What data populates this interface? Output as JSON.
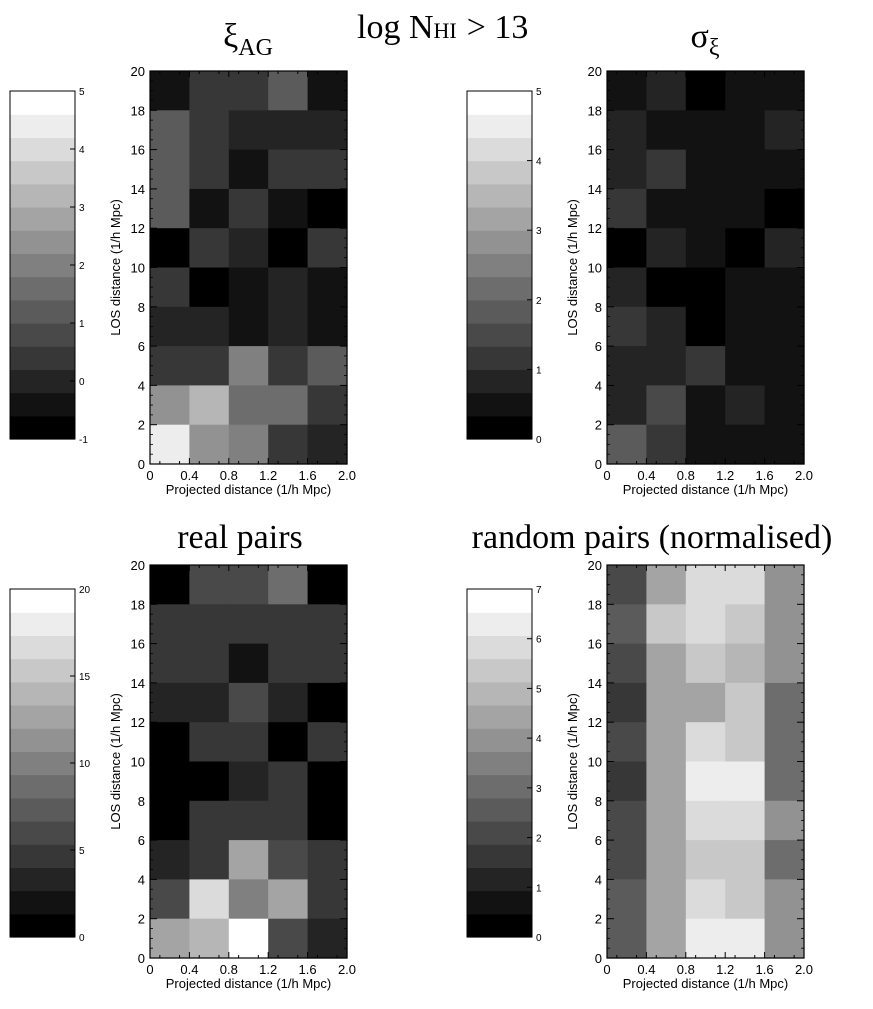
{
  "figure": {
    "title_main": "log N",
    "title_sub": "HI",
    "title_rest": ">   13"
  },
  "chart_data": [
    {
      "type": "heatmap",
      "title": "ξ",
      "title_sub": "AG",
      "xlabel": "Projected distance (1/h Mpc)",
      "ylabel": "LOS distance (1/h Mpc)",
      "xlim": [
        0,
        2.0
      ],
      "ylim": [
        0,
        20
      ],
      "xticks": [
        "0",
        "0.4",
        "0.8",
        "1.2",
        "1.6",
        "2.0"
      ],
      "yticks": [
        "0",
        "2",
        "4",
        "6",
        "8",
        "10",
        "12",
        "14",
        "16",
        "18",
        "20"
      ],
      "x_bin_edges": [
        0,
        0.4,
        0.8,
        1.2,
        1.6,
        2.0
      ],
      "y_bin_edges": [
        0,
        2,
        4,
        6,
        8,
        10,
        12,
        14,
        16,
        18,
        20
      ],
      "colorbar": {
        "min": -1,
        "max": 5,
        "ticks": [
          "-1",
          "0",
          "1",
          "2",
          "3",
          "4",
          "5"
        ],
        "levels": 15
      },
      "values_top_to_bottom": [
        [
          -0.5,
          0.5,
          0.5,
          1.0,
          -0.5
        ],
        [
          1.0,
          0.5,
          0.0,
          0.0,
          0.0
        ],
        [
          1.2,
          0.5,
          -0.5,
          0.5,
          0.5
        ],
        [
          1.2,
          -0.5,
          0.5,
          -0.5,
          -1.0
        ],
        [
          -1.0,
          0.5,
          0.0,
          -1.0,
          0.5
        ],
        [
          0.5,
          -1.0,
          -0.5,
          0.0,
          -0.5
        ],
        [
          0.0,
          0.0,
          -0.5,
          0.0,
          -0.5
        ],
        [
          0.5,
          0.5,
          2.0,
          0.5,
          1.0
        ],
        [
          2.5,
          3.0,
          1.5,
          1.8,
          0.5
        ],
        [
          4.5,
          2.5,
          2.0,
          0.5,
          0.0
        ]
      ]
    },
    {
      "type": "heatmap",
      "title": "σ",
      "title_sub": "ξ",
      "xlabel": "Projected distance (1/h Mpc)",
      "ylabel": "LOS distance (1/h Mpc)",
      "xlim": [
        0,
        2.0
      ],
      "ylim": [
        0,
        20
      ],
      "xticks": [
        "0",
        "0.4",
        "0.8",
        "1.2",
        "1.6",
        "2.0"
      ],
      "yticks": [
        "0",
        "2",
        "4",
        "6",
        "8",
        "10",
        "12",
        "14",
        "16",
        "18",
        "20"
      ],
      "x_bin_edges": [
        0,
        0.4,
        0.8,
        1.2,
        1.6,
        2.0
      ],
      "y_bin_edges": [
        0,
        2,
        4,
        6,
        8,
        10,
        12,
        14,
        16,
        18,
        20
      ],
      "colorbar": {
        "min": 0,
        "max": 5,
        "ticks": [
          "0",
          "1",
          "2",
          "3",
          "4",
          "5"
        ],
        "levels": 15
      },
      "values_top_to_bottom": [
        [
          0.4,
          0.7,
          0.0,
          0.4,
          0.4
        ],
        [
          0.7,
          0.4,
          0.4,
          0.4,
          0.7
        ],
        [
          0.7,
          1.0,
          0.4,
          0.4,
          0.4
        ],
        [
          1.0,
          0.4,
          0.4,
          0.4,
          0.0
        ],
        [
          0.0,
          0.7,
          0.4,
          0.0,
          0.7
        ],
        [
          0.7,
          0.0,
          0.0,
          0.4,
          0.4
        ],
        [
          1.0,
          0.7,
          0.0,
          0.4,
          0.4
        ],
        [
          0.7,
          0.7,
          1.0,
          0.4,
          0.4
        ],
        [
          0.7,
          1.4,
          0.4,
          0.7,
          0.4
        ],
        [
          1.7,
          1.0,
          0.4,
          0.4,
          0.4
        ]
      ]
    },
    {
      "type": "heatmap",
      "title": "real pairs",
      "xlabel": "Projected distance (1/h Mpc)",
      "ylabel": "LOS distance (1/h Mpc)",
      "xlim": [
        0,
        2.0
      ],
      "ylim": [
        0,
        20
      ],
      "xticks": [
        "0",
        "0.4",
        "0.8",
        "1.2",
        "1.6",
        "2.0"
      ],
      "yticks": [
        "0",
        "2",
        "4",
        "6",
        "8",
        "10",
        "12",
        "14",
        "16",
        "18",
        "20"
      ],
      "x_bin_edges": [
        0,
        0.4,
        0.8,
        1.2,
        1.6,
        2.0
      ],
      "y_bin_edges": [
        0,
        2,
        4,
        6,
        8,
        10,
        12,
        14,
        16,
        18,
        20
      ],
      "colorbar": {
        "min": 0,
        "max": 20,
        "ticks": [
          "0",
          "5",
          "10",
          "15",
          "20"
        ],
        "levels": 15
      },
      "values_top_to_bottom": [
        [
          0,
          6,
          6,
          9,
          1
        ],
        [
          4,
          5,
          5,
          4,
          4
        ],
        [
          4,
          5,
          2,
          5,
          4
        ],
        [
          3,
          3,
          6,
          3,
          0
        ],
        [
          0,
          4,
          4,
          1,
          4
        ],
        [
          1,
          0,
          3,
          5,
          1
        ],
        [
          1,
          4,
          4,
          4,
          1
        ],
        [
          3,
          5,
          13,
          6,
          5
        ],
        [
          6,
          17,
          10,
          13,
          4
        ],
        [
          13,
          14,
          20,
          6,
          3
        ]
      ]
    },
    {
      "type": "heatmap",
      "title": "random pairs (normalised)",
      "xlabel": "Projected distance (1/h Mpc)",
      "ylabel": "LOS distance (1/h Mpc)",
      "xlim": [
        0,
        2.0
      ],
      "ylim": [
        0,
        20
      ],
      "xticks": [
        "0",
        "0.4",
        "0.8",
        "1.2",
        "1.6",
        "2.0"
      ],
      "yticks": [
        "0",
        "2",
        "4",
        "6",
        "8",
        "10",
        "12",
        "14",
        "16",
        "18",
        "20"
      ],
      "x_bin_edges": [
        0,
        0.4,
        0.8,
        1.2,
        1.6,
        2.0
      ],
      "y_bin_edges": [
        0,
        2,
        4,
        6,
        8,
        10,
        12,
        14,
        16,
        18,
        20
      ],
      "colorbar": {
        "min": 0,
        "max": 7,
        "ticks": [
          "0",
          "1",
          "2",
          "3",
          "4",
          "5",
          "6",
          "7"
        ],
        "levels": 15
      },
      "values_top_to_bottom": [
        [
          2.0,
          4.5,
          6.0,
          6.0,
          3.8
        ],
        [
          2.5,
          5.2,
          6.0,
          5.5,
          3.8
        ],
        [
          2.0,
          4.2,
          5.5,
          5.0,
          3.8
        ],
        [
          1.5,
          4.2,
          4.5,
          5.5,
          3.2
        ],
        [
          2.0,
          4.2,
          6.0,
          5.5,
          3.2
        ],
        [
          1.5,
          4.2,
          6.5,
          6.5,
          3.2
        ],
        [
          2.0,
          4.2,
          6.0,
          6.0,
          3.8
        ],
        [
          2.0,
          4.5,
          5.2,
          5.2,
          3.2
        ],
        [
          2.5,
          4.5,
          6.0,
          5.2,
          3.8
        ],
        [
          2.5,
          4.5,
          6.5,
          6.5,
          3.8
        ]
      ]
    }
  ]
}
